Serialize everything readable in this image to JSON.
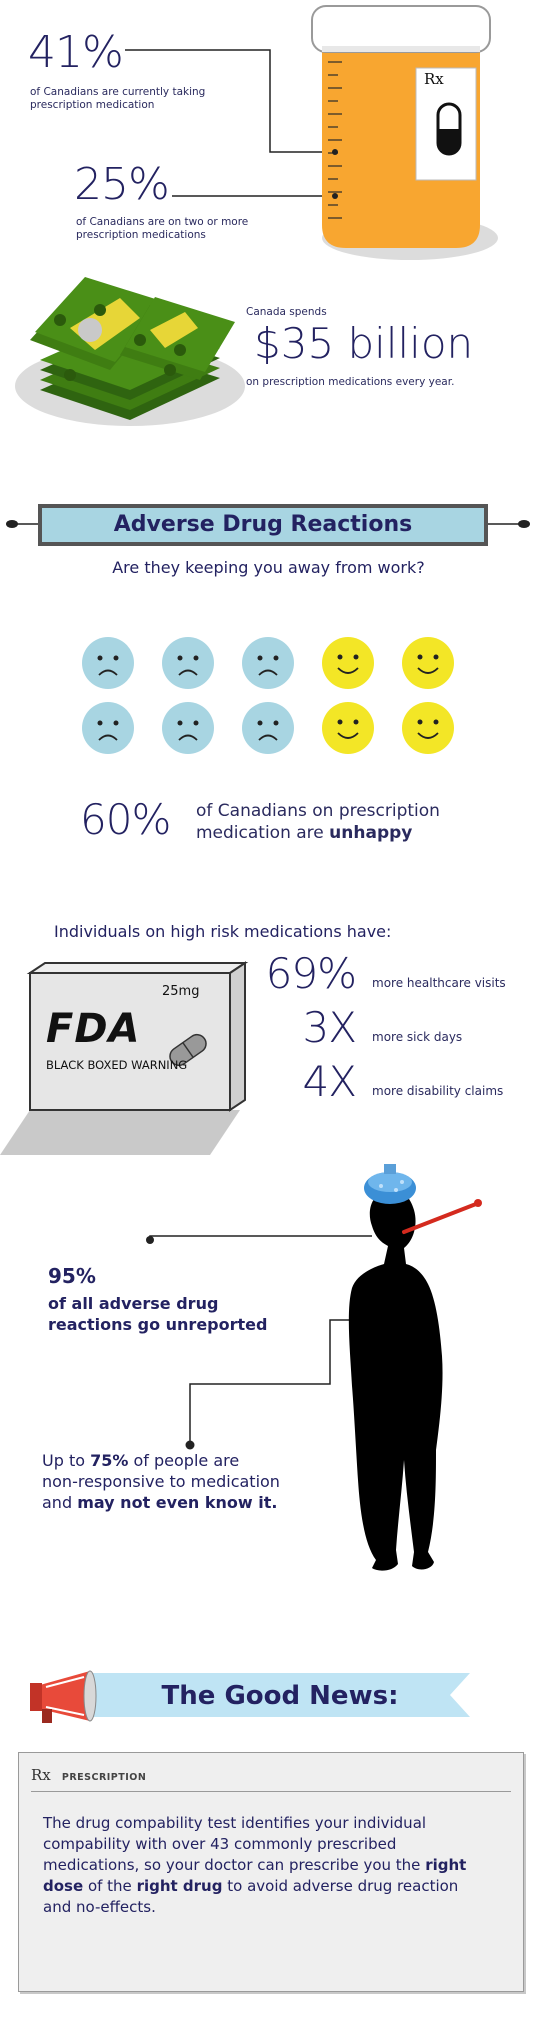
{
  "stats_top": [
    {
      "value": "41%",
      "caption": "of Canadians are currently taking prescription medication"
    },
    {
      "value": "25%",
      "caption": "of Canadians are on two or more prescription medications"
    }
  ],
  "bottle": {
    "label": "Rx"
  },
  "spending": {
    "intro": "Canada spends",
    "amount": "$35 billion",
    "caption": "on prescription medications every year."
  },
  "adr": {
    "banner": "Adverse Drug Reactions",
    "question": "Are they keeping you away from work?"
  },
  "faces": {
    "sad": 6,
    "happy": 4,
    "sad_color": "#a8d5e2",
    "happy_color": "#f3e626"
  },
  "unhappy": {
    "value": "60%",
    "line1": "of Canadians on prescription",
    "line2_prefix": "medication are",
    "line2_bold": "unhappy"
  },
  "high_risk": {
    "heading": "Individuals on high risk medications have:",
    "box": {
      "dose": "25mg",
      "logo": "FDA",
      "warning": "BLACK BOXED WARNING"
    },
    "stats": [
      {
        "value": "69%",
        "label": "more healthcare visits"
      },
      {
        "value": "3X",
        "label": "more sick days"
      },
      {
        "value": "4X",
        "label": "more disability claims"
      }
    ]
  },
  "unreported": {
    "value": "95%",
    "line1": "of all adverse drug",
    "line2": "reactions go unreported"
  },
  "nonresponsive": {
    "prefix": "Up to",
    "value": "75%",
    "mid": "of people are",
    "line2": "non-responsive to medication",
    "line3_prefix": "and",
    "line3_bold": "may not even know it."
  },
  "good_news": {
    "title": "The Good News:"
  },
  "prescription": {
    "rx": "Rx",
    "header": "PRESCRIPTION",
    "body_1": "The drug compability test identifies your individual compability with over 43 commonly prescribed medications, so your doctor can prescribe you the",
    "bold_1": "right dose",
    "body_2": "of the",
    "bold_2": "right drug",
    "body_3": "to avoid adverse drug reaction and no-effects."
  },
  "colors": {
    "navy": "#232261",
    "orange": "#f8a630",
    "banner": "#a8d5e2",
    "money": "#3f7d12"
  }
}
